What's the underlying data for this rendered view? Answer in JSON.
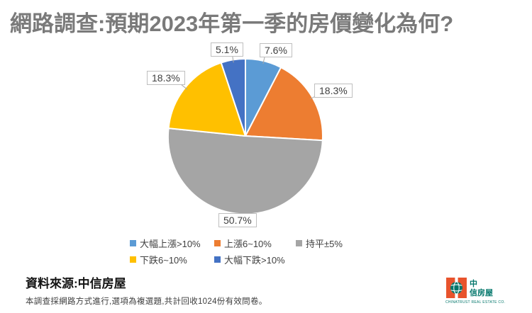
{
  "title": "網路調查:預期2023年第一季的房價變化為何?",
  "chart_data": {
    "type": "pie",
    "title": "網路調查:預期2023年第一季的房價變化為何?",
    "labels": [
      "大幅上漲>10%",
      "上漲6~10%",
      "持平±5%",
      "下跌6~10%",
      "大幅下跌>10%"
    ],
    "values": [
      7.6,
      18.3,
      50.7,
      18.3,
      5.1
    ],
    "data_labels": [
      "7.6%",
      "18.3%",
      "50.7%",
      "18.3%",
      "5.1%"
    ],
    "colors": [
      "#5b9bd5",
      "#ed7d31",
      "#a5a5a5",
      "#ffc000",
      "#4472c4"
    ],
    "start_angle_deg": 0,
    "direction": "clockwise",
    "legend_position": "bottom",
    "unit": "%"
  },
  "theme": {
    "title_color": "#7a7a7a",
    "label_color": "#404040",
    "callout_border": "#bfbfbf",
    "leader_line_color": "#a6a6a6"
  },
  "footer": {
    "source": "資料來源:中信房屋",
    "note": "本調查採網路方式進行,選項為複選題,共計回收1024份有效問卷。"
  },
  "logo": {
    "name_line1": "中",
    "name_line2": "信房屋",
    "tagline": "CHINATRUST REAL ESTATE CO.",
    "orange": "#e8532c",
    "teal": "#00756a"
  }
}
